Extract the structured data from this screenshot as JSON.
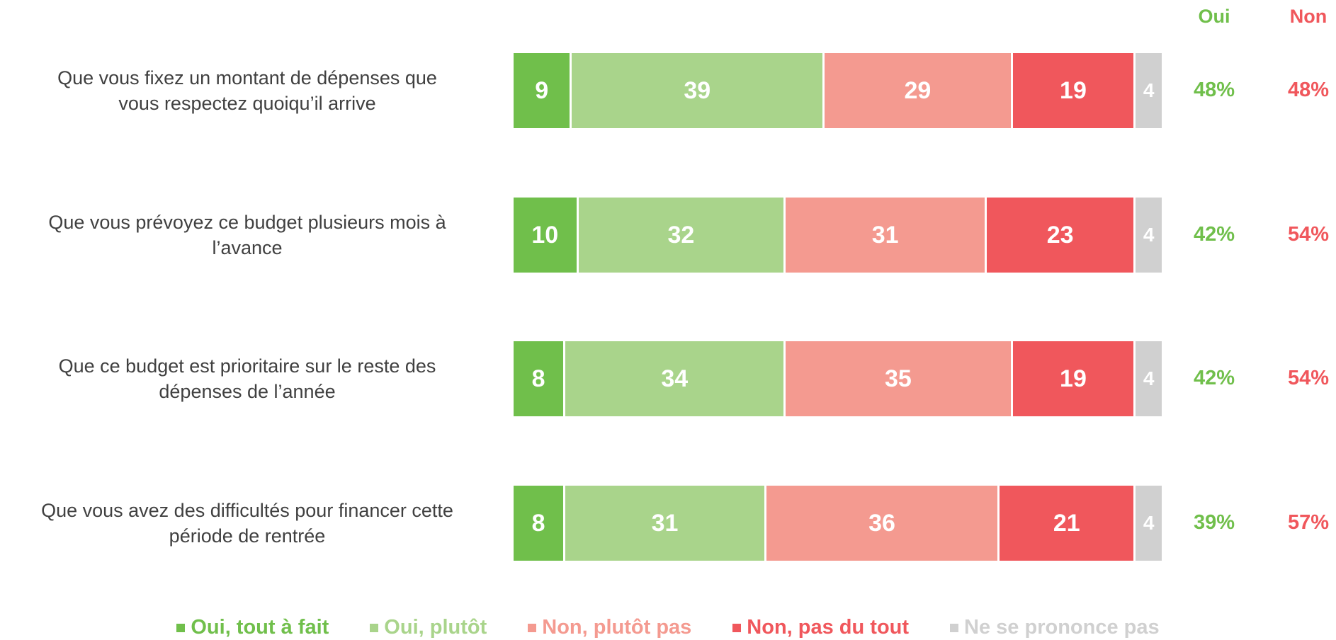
{
  "chart_data": {
    "type": "stacked-bar-horizontal",
    "categories": [
      [
        "Que vous fixez un montant de dépenses que",
        "vous respectez quoiqu’il arrive"
      ],
      [
        "Que vous prévoyez ce budget plusieurs mois à",
        "l’avance"
      ],
      [
        "Que ce budget est prioritaire sur le reste des",
        "dépenses de l’année"
      ],
      [
        "Que vous avez des difficultés pour financer cette",
        "période de rentrée"
      ]
    ],
    "series": [
      {
        "name": "Oui, tout à fait",
        "color": "#70bf4b",
        "values": [
          9,
          10,
          8,
          8
        ]
      },
      {
        "name": "Oui, plutôt",
        "color": "#a9d48b",
        "values": [
          39,
          32,
          34,
          31
        ]
      },
      {
        "name": "Non, plutôt pas",
        "color": "#f49a90",
        "values": [
          29,
          31,
          35,
          36
        ]
      },
      {
        "name": "Non, pas du tout",
        "color": "#f0575c",
        "values": [
          19,
          23,
          19,
          21
        ]
      },
      {
        "name": "Ne se prononce pas",
        "color": "#d0d0d0",
        "values": [
          4,
          4,
          4,
          4
        ]
      }
    ],
    "summary": [
      {
        "name": "Oui",
        "color": "#70bf4b",
        "values": [
          48,
          42,
          42,
          39
        ],
        "value_labels": [
          "48%",
          "42%",
          "42%",
          "39%"
        ]
      },
      {
        "name": "Non",
        "color": "#f0575c",
        "values": [
          48,
          54,
          54,
          57
        ],
        "value_labels": [
          "48%",
          "54%",
          "54%",
          "57%"
        ]
      }
    ],
    "legend": "bottom"
  }
}
